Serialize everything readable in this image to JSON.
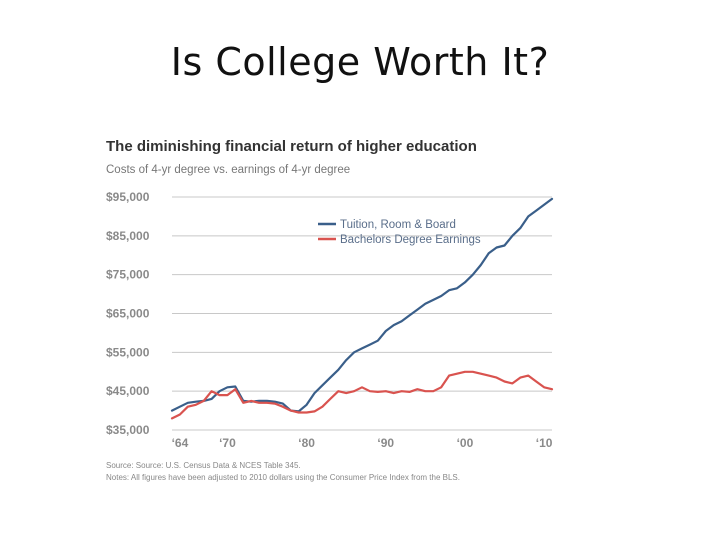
{
  "slide": {
    "title": "Is College Worth It?"
  },
  "chart_data": {
    "type": "line",
    "title": "The diminishing financial return of higher education",
    "subtitle": "Costs of 4-yr degree vs. earnings of 4-yr degree",
    "ylim": [
      35000,
      95000
    ],
    "xlim": [
      1963,
      2011
    ],
    "y_ticks": [
      {
        "value": 95000,
        "label": "$95,000"
      },
      {
        "value": 85000,
        "label": "$85,000"
      },
      {
        "value": 75000,
        "label": "$75,000"
      },
      {
        "value": 65000,
        "label": "$65,000"
      },
      {
        "value": 55000,
        "label": "$55,000"
      },
      {
        "value": 45000,
        "label": "$45,000"
      },
      {
        "value": 35000,
        "label": "$35,000"
      }
    ],
    "x_ticks": [
      {
        "value": 1964,
        "label": "‘64"
      },
      {
        "value": 1970,
        "label": "‘70"
      },
      {
        "value": 1980,
        "label": "‘80"
      },
      {
        "value": 1990,
        "label": "‘90"
      },
      {
        "value": 2000,
        "label": "‘00"
      },
      {
        "value": 2010,
        "label": "‘10"
      }
    ],
    "grid": true,
    "legend_position": "top-right",
    "series": [
      {
        "name": "Tuition, Room & Board",
        "color": "#3a5f8a",
        "x": [
          1963,
          1964,
          1965,
          1966,
          1967,
          1968,
          1969,
          1970,
          1971,
          1972,
          1973,
          1974,
          1975,
          1976,
          1977,
          1978,
          1979,
          1980,
          1981,
          1982,
          1983,
          1984,
          1985,
          1986,
          1987,
          1988,
          1989,
          1990,
          1991,
          1992,
          1993,
          1994,
          1995,
          1996,
          1997,
          1998,
          1999,
          2000,
          2001,
          2002,
          2003,
          2004,
          2005,
          2006,
          2007,
          2008,
          2009,
          2010,
          2011
        ],
        "values": [
          40000,
          41000,
          42000,
          42300,
          42500,
          43000,
          45000,
          46000,
          46200,
          42500,
          42300,
          42500,
          42500,
          42300,
          41800,
          40000,
          39800,
          41500,
          44500,
          46500,
          48500,
          50500,
          53000,
          55000,
          56000,
          57000,
          58000,
          60500,
          62000,
          63000,
          64500,
          66000,
          67500,
          68500,
          69500,
          71000,
          71500,
          73000,
          75000,
          77500,
          80500,
          82000,
          82500,
          85000,
          87000,
          90000,
          91500,
          93000,
          94500
        ]
      },
      {
        "name": "Bachelors Degree Earnings",
        "color": "#d9534f",
        "x": [
          1963,
          1964,
          1965,
          1966,
          1967,
          1968,
          1969,
          1970,
          1971,
          1972,
          1973,
          1974,
          1975,
          1976,
          1977,
          1978,
          1979,
          1980,
          1981,
          1982,
          1983,
          1984,
          1985,
          1986,
          1987,
          1988,
          1989,
          1990,
          1991,
          1992,
          1993,
          1994,
          1995,
          1996,
          1997,
          1998,
          1999,
          2000,
          2001,
          2002,
          2003,
          2004,
          2005,
          2006,
          2007,
          2008,
          2009,
          2010,
          2011
        ],
        "values": [
          38000,
          39000,
          41000,
          41500,
          42500,
          45000,
          44000,
          44000,
          45500,
          42000,
          42500,
          42000,
          42000,
          41800,
          41000,
          40000,
          39500,
          39500,
          39800,
          41000,
          43000,
          45000,
          44500,
          45000,
          46000,
          45000,
          44800,
          45000,
          44500,
          45000,
          44800,
          45500,
          45000,
          45000,
          46000,
          49000,
          49500,
          50000,
          50000,
          49500,
          49000,
          48500,
          47500,
          47000,
          48500,
          49000,
          47500,
          46000,
          45500
        ]
      }
    ],
    "source": "Source: Source: U.S. Census Data & NCES Table 345.",
    "notes": "Notes: All figures have been adjusted to 2010 dollars using the Consumer Price Index from the BLS."
  }
}
